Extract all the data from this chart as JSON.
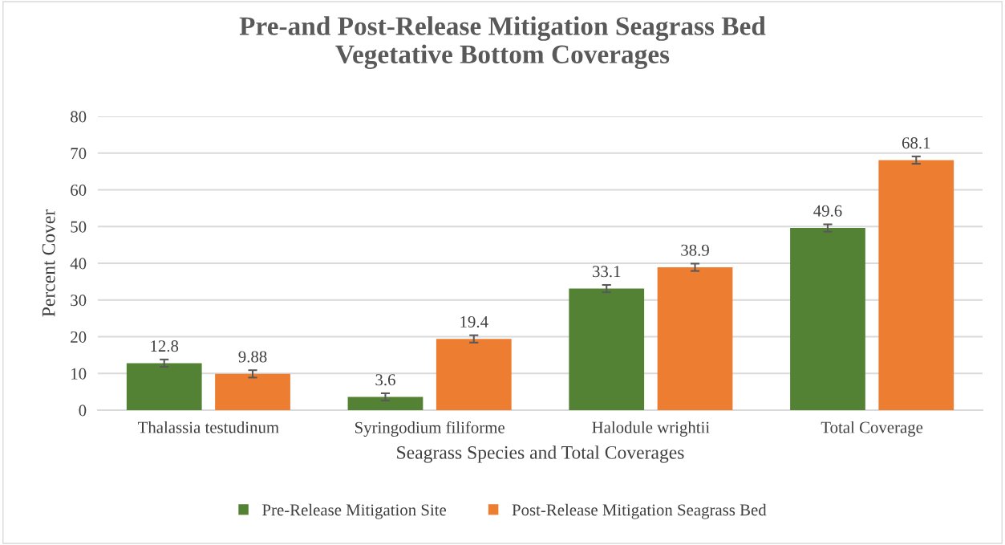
{
  "chart_data": {
    "type": "bar",
    "title": "Pre-and Post-Release Mitigation Seagrass Bed\nVegetative Bottom Coverages",
    "xlabel": "Seagrass Species and Total Coverages",
    "ylabel": "Percent Cover",
    "categories": [
      "Thalassia testudinum",
      "Syringodium filiforme",
      "Halodule wrightii",
      "Total Coverage"
    ],
    "series": [
      {
        "name": "Pre-Release Mitigation Site",
        "color": "#548235",
        "values": [
          12.8,
          3.6,
          33.1,
          49.6
        ],
        "errors": [
          1,
          1,
          1,
          1
        ],
        "value_labels": [
          "12.8",
          "3.6",
          "33.1",
          "49.6"
        ]
      },
      {
        "name": "Post-Release Mitigation Seagrass Bed",
        "color": "#ed7d31",
        "values": [
          9.88,
          19.4,
          38.9,
          68.1
        ],
        "errors": [
          1,
          1,
          1,
          1
        ],
        "value_labels": [
          "9.88",
          "19.4",
          "38.9",
          "68.1"
        ]
      }
    ],
    "ylim": [
      0,
      80
    ],
    "yticks": [
      0,
      10,
      20,
      30,
      40,
      50,
      60,
      70,
      80
    ],
    "grid": "y",
    "legend": "bottom"
  }
}
